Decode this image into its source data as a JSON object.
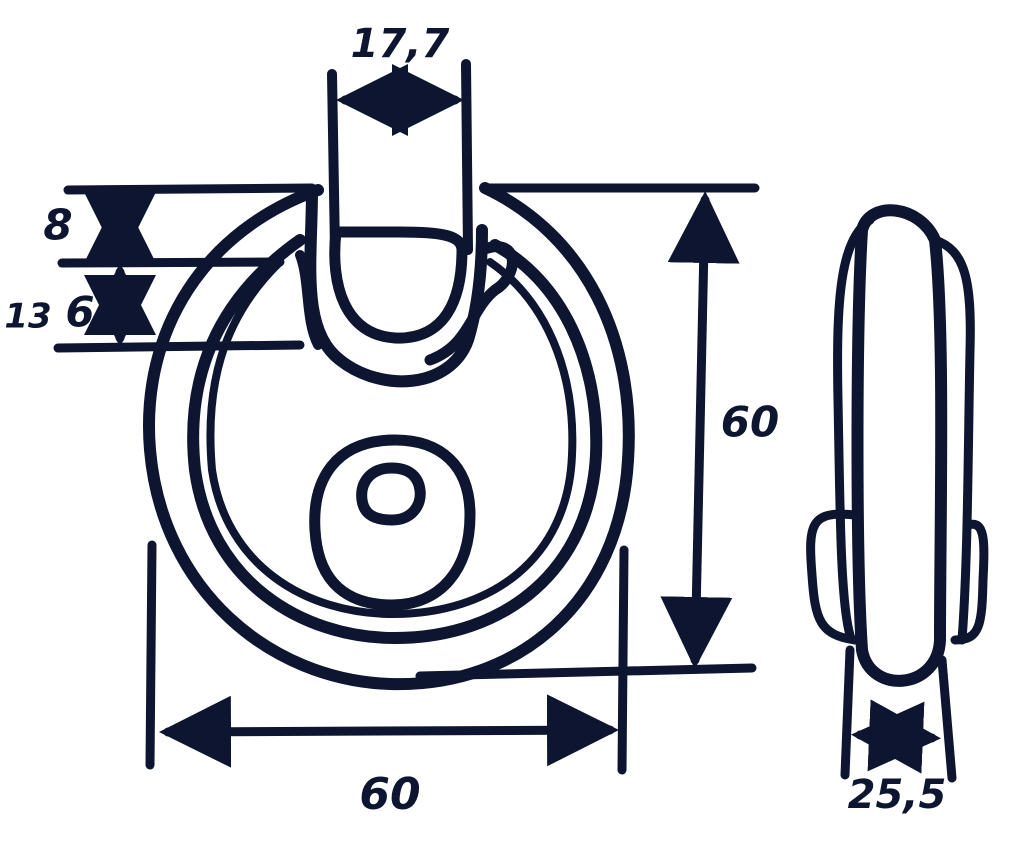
{
  "colors": {
    "ink": "#0d1530",
    "background": "#ffffff"
  },
  "dimensions": {
    "shackle_width": "17,7",
    "shackle_clearance": "8",
    "shackle_depth_total": "13",
    "shackle_depth_inner": "6",
    "body_height": "60",
    "body_width": "60",
    "body_thickness": "25,5"
  }
}
